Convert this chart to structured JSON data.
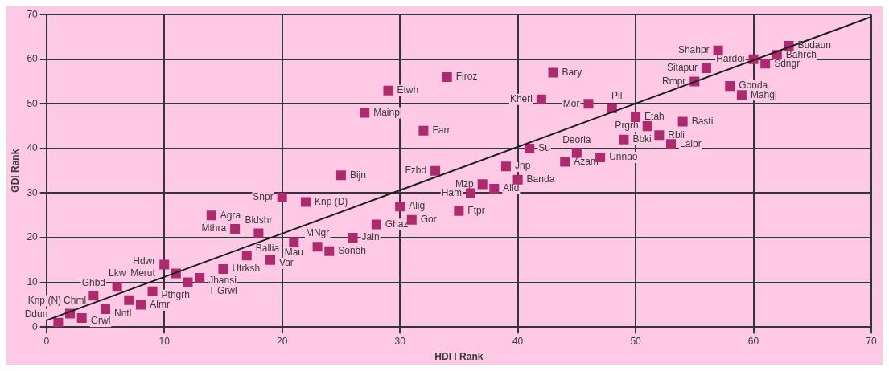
{
  "chart_data": {
    "type": "scatter",
    "xlabel": "HDI I Rank",
    "ylabel": "GDI Rank",
    "xlim": [
      0,
      70
    ],
    "xticks": [
      0,
      10,
      20,
      30,
      40,
      50,
      60,
      70
    ],
    "ylim": [
      0,
      70
    ],
    "yticks": [
      0,
      10,
      20,
      30,
      40,
      50,
      60,
      70
    ],
    "grid": true,
    "legend": false,
    "marker": "square",
    "series": [
      {
        "type": "scatter",
        "color": "#ad2a6f",
        "x": [
          1,
          2,
          3,
          4,
          5,
          6,
          7,
          8,
          9,
          10,
          11,
          12,
          13,
          14,
          15,
          16,
          17,
          18,
          19,
          20,
          21,
          22,
          23,
          24,
          25,
          26,
          27,
          28,
          29,
          30,
          31,
          32,
          33,
          34,
          35,
          36,
          37,
          38,
          39,
          40,
          41,
          42,
          43,
          44,
          45,
          46,
          47,
          48,
          49,
          50,
          51,
          52,
          53,
          54,
          55,
          56,
          57,
          58,
          59,
          60,
          61,
          62,
          63
        ],
        "values": [
          1,
          3,
          2,
          7,
          4,
          9,
          6,
          5,
          8,
          14,
          12,
          10,
          11,
          25,
          13,
          22,
          16,
          21,
          15,
          29,
          19,
          28,
          18,
          17,
          34,
          20,
          48,
          23,
          53,
          27,
          24,
          44,
          35,
          56,
          26,
          30,
          32,
          31,
          36,
          33,
          40,
          51,
          57,
          37,
          39,
          50,
          38,
          49,
          42,
          47,
          45,
          43,
          41,
          46,
          55,
          58,
          62,
          54,
          52,
          60,
          59,
          61,
          63
        ]
      },
      {
        "type": "line",
        "color": "#1e1e1e",
        "marker": "none",
        "x": [
          0,
          70
        ],
        "values": [
          1.5,
          69.5
        ]
      }
    ],
    "annotations": [
      {
        "text": "Ddun",
        "x": 1,
        "y": 1
      },
      {
        "text": "Knp (N)",
        "x": 2,
        "y": 3
      },
      {
        "text": "Chml",
        "x": 2,
        "y": 3
      },
      {
        "text": "Grwl",
        "x": 3,
        "y": 2
      },
      {
        "text": "Ghbd",
        "x": 4,
        "y": 7
      },
      {
        "text": "Nntl",
        "x": 5,
        "y": 4
      },
      {
        "text": "Lkw",
        "x": 6,
        "y": 9
      },
      {
        "text": "Almr",
        "x": 7,
        "y": 6
      },
      {
        "text": "Pthgrh",
        "x": 9,
        "y": 8
      },
      {
        "text": "Hdwr",
        "x": 10,
        "y": 14
      },
      {
        "text": "Merut",
        "x": 11,
        "y": 12
      },
      {
        "text": "T Grwl",
        "x": 12,
        "y": 10
      },
      {
        "text": "Jhansi",
        "x": 13,
        "y": 11
      },
      {
        "text": "Utrksh",
        "x": 15,
        "y": 13
      },
      {
        "text": "Agra",
        "x": 14,
        "y": 25
      },
      {
        "text": "Mthra",
        "x": 16,
        "y": 22
      },
      {
        "text": "Ballia",
        "x": 17,
        "y": 16
      },
      {
        "text": "Bldshr",
        "x": 18,
        "y": 21
      },
      {
        "text": "Var",
        "x": 19,
        "y": 15
      },
      {
        "text": "Snpr",
        "x": 20,
        "y": 29
      },
      {
        "text": "Mau",
        "x": 21,
        "y": 19
      },
      {
        "text": "Knp (D)",
        "x": 22,
        "y": 28
      },
      {
        "text": "MNgr",
        "x": 23,
        "y": 18
      },
      {
        "text": "Sonbh",
        "x": 24,
        "y": 17
      },
      {
        "text": "Bijn",
        "x": 25,
        "y": 34
      },
      {
        "text": "Jaln",
        "x": 26,
        "y": 20
      },
      {
        "text": "Mainp",
        "x": 27,
        "y": 48
      },
      {
        "text": "Ghaz",
        "x": 28,
        "y": 23
      },
      {
        "text": "Etwh",
        "x": 29,
        "y": 53
      },
      {
        "text": "Alig",
        "x": 30,
        "y": 27
      },
      {
        "text": "Gor",
        "x": 31,
        "y": 24
      },
      {
        "text": "Farr",
        "x": 32,
        "y": 44
      },
      {
        "text": "Fzbd",
        "x": 33,
        "y": 35
      },
      {
        "text": "Firoz",
        "x": 34,
        "y": 56
      },
      {
        "text": "Ftpr",
        "x": 35,
        "y": 26
      },
      {
        "text": "Ham",
        "x": 36,
        "y": 30
      },
      {
        "text": "Mzp",
        "x": 37,
        "y": 32
      },
      {
        "text": "Alld",
        "x": 38,
        "y": 31
      },
      {
        "text": "Jnp",
        "x": 39,
        "y": 36
      },
      {
        "text": "Banda",
        "x": 40,
        "y": 33
      },
      {
        "text": "Su",
        "x": 41,
        "y": 40
      },
      {
        "text": "Kheri",
        "x": 42,
        "y": 51
      },
      {
        "text": "Bary",
        "x": 43,
        "y": 57
      },
      {
        "text": "Azam",
        "x": 44,
        "y": 37
      },
      {
        "text": "Deoria",
        "x": 45,
        "y": 39
      },
      {
        "text": "Mor",
        "x": 46,
        "y": 50
      },
      {
        "text": "Unnao",
        "x": 47,
        "y": 38
      },
      {
        "text": "Pil",
        "x": 48,
        "y": 49
      },
      {
        "text": "Bbki",
        "x": 49,
        "y": 42
      },
      {
        "text": "Etah",
        "x": 50,
        "y": 47
      },
      {
        "text": "Prgrh",
        "x": 51,
        "y": 45
      },
      {
        "text": "Rbli",
        "x": 52,
        "y": 43
      },
      {
        "text": "Lalpr",
        "x": 53,
        "y": 41
      },
      {
        "text": "Basti",
        "x": 54,
        "y": 46
      },
      {
        "text": "Rmpr",
        "x": 55,
        "y": 55
      },
      {
        "text": "Sitapur",
        "x": 56,
        "y": 58
      },
      {
        "text": "Shahpr",
        "x": 57,
        "y": 62
      },
      {
        "text": "Gonda",
        "x": 58,
        "y": 54
      },
      {
        "text": "Mahgj",
        "x": 59,
        "y": 52
      },
      {
        "text": "Hardoi",
        "x": 60,
        "y": 60
      },
      {
        "text": "Sdngr",
        "x": 61,
        "y": 59
      },
      {
        "text": "Bahrch",
        "x": 62,
        "y": 61
      },
      {
        "text": "Budaun",
        "x": 63,
        "y": 63
      }
    ]
  }
}
